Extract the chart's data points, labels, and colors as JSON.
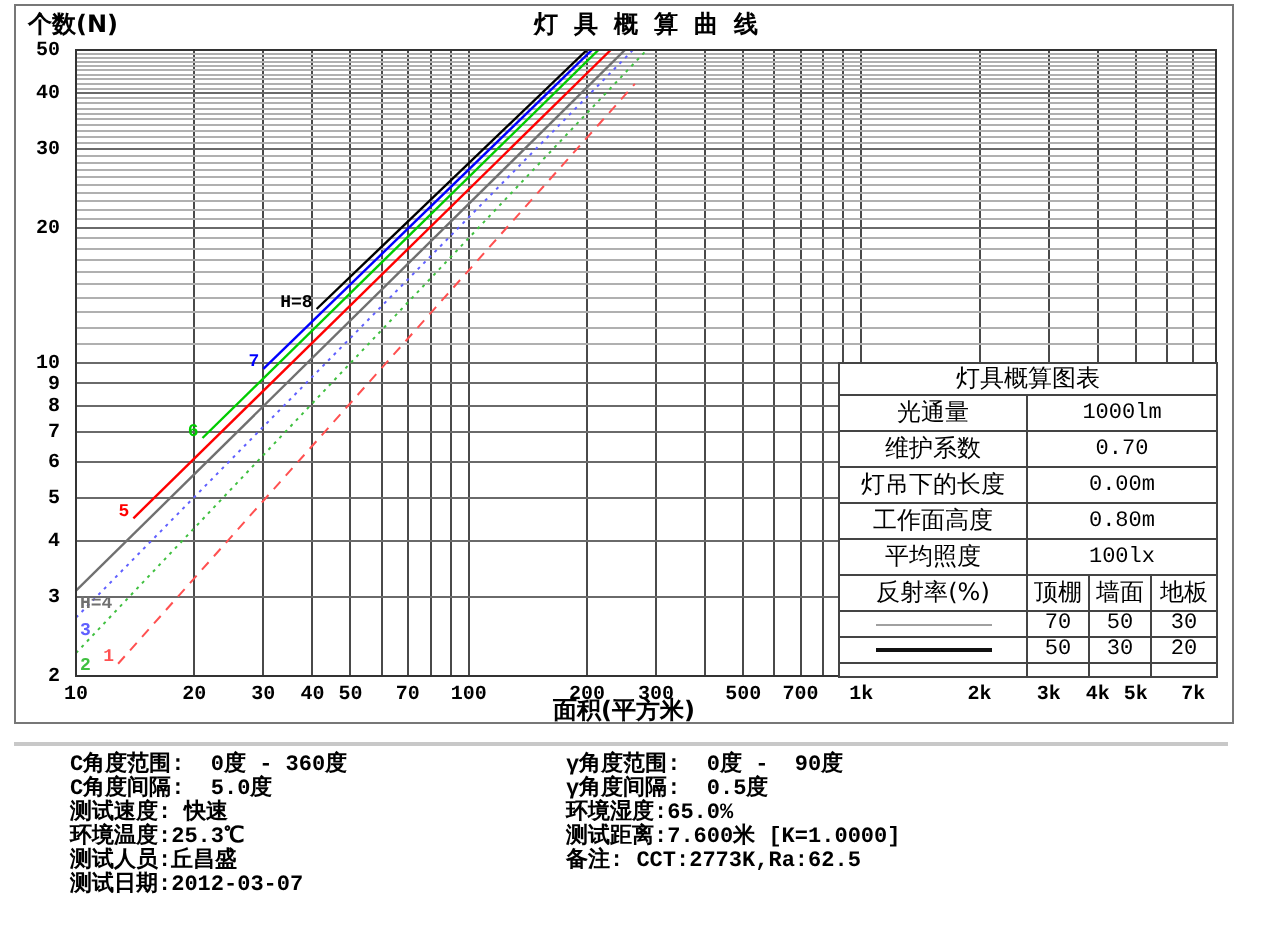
{
  "chart_data": {
    "type": "line",
    "title": "灯具概算曲线",
    "xlabel": "面积(平方米)",
    "ylabel": "个数(N)",
    "log": "xy",
    "grid": true,
    "marker": "none",
    "xlim": [
      10,
      8000
    ],
    "xticks": [
      10,
      20,
      30,
      40,
      50,
      {
        "value": 60,
        "label": null
      },
      70,
      {
        "value": 80,
        "label": null
      },
      {
        "value": 90,
        "label": null
      },
      100,
      200,
      300,
      {
        "value": 400,
        "label": null
      },
      500,
      {
        "value": 600,
        "label": null
      },
      700,
      {
        "value": 800,
        "label": null
      },
      {
        "value": 900,
        "label": null
      },
      {
        "value": 1000,
        "label": "1k"
      },
      {
        "value": 2000,
        "label": "2k"
      },
      {
        "value": 3000,
        "label": "3k"
      },
      {
        "value": 4000,
        "label": "4k"
      },
      {
        "value": 5000,
        "label": "5k"
      },
      {
        "value": 6000,
        "label": null
      },
      {
        "value": 7000,
        "label": "7k"
      }
    ],
    "ylim": [
      2,
      50
    ],
    "yticks": [
      2,
      3,
      4,
      5,
      6,
      7,
      8,
      9,
      10,
      {
        "value": 11,
        "label": null
      },
      {
        "value": 12,
        "label": null
      },
      {
        "value": 13,
        "label": null
      },
      {
        "value": 14,
        "label": null
      },
      {
        "value": 15,
        "label": null
      },
      {
        "value": 16,
        "label": null
      },
      {
        "value": 17,
        "label": null
      },
      {
        "value": 18,
        "label": null
      },
      {
        "value": 19,
        "label": null
      },
      20,
      {
        "value": 21,
        "label": null
      },
      {
        "value": 22,
        "label": null
      },
      {
        "value": 23,
        "label": null
      },
      {
        "value": 24,
        "label": null
      },
      {
        "value": 25,
        "label": null
      },
      {
        "value": 26,
        "label": null
      },
      {
        "value": 27,
        "label": null
      },
      {
        "value": 28,
        "label": null
      },
      {
        "value": 29,
        "label": null
      },
      30,
      {
        "value": 31,
        "label": null
      },
      {
        "value": 32,
        "label": null
      },
      {
        "value": 33,
        "label": null
      },
      {
        "value": 34,
        "label": null
      },
      {
        "value": 35,
        "label": null
      },
      {
        "value": 36,
        "label": null
      },
      {
        "value": 37,
        "label": null
      },
      {
        "value": 38,
        "label": null
      },
      {
        "value": 39,
        "label": null
      },
      40,
      {
        "value": 41,
        "label": null
      },
      {
        "value": 42,
        "label": null
      },
      {
        "value": 43,
        "label": null
      },
      {
        "value": 44,
        "label": null
      },
      {
        "value": 45,
        "label": null
      },
      {
        "value": 46,
        "label": null
      },
      {
        "value": 47,
        "label": null
      },
      {
        "value": 48,
        "label": null
      },
      {
        "value": 49,
        "label": null
      },
      50
    ],
    "series": [
      {
        "name": "1",
        "color": "#ff5050",
        "line_style": "dashed",
        "x": [
          12.8,
          265
        ],
        "values": [
          2.13,
          42
        ]
      },
      {
        "name": "2",
        "color": "#40c040",
        "line_style": "dotted",
        "x": [
          10,
          284
        ],
        "values": [
          2.25,
          50
        ]
      },
      {
        "name": "3",
        "color": "#6060ff",
        "line_style": "dotted",
        "x": [
          10,
          262
        ],
        "values": [
          2.7,
          50
        ]
      },
      {
        "name": "H=4",
        "color": "#707070",
        "line_style": "solid",
        "x": [
          10,
          250
        ],
        "values": [
          3.1,
          50
        ]
      },
      {
        "name": "5",
        "color": "#ff0000",
        "line_style": "solid",
        "x": [
          14,
          230
        ],
        "values": [
          4.5,
          50
        ]
      },
      {
        "name": "6",
        "color": "#00cc00",
        "line_style": "solid",
        "x": [
          21,
          214
        ],
        "values": [
          6.8,
          50
        ]
      },
      {
        "name": "7",
        "color": "#0000ff",
        "line_style": "solid",
        "x": [
          30,
          206
        ],
        "values": [
          9.7,
          50
        ]
      },
      {
        "name": "H=8",
        "color": "#000000",
        "line_style": "solid",
        "x": [
          41,
          200
        ],
        "values": [
          13.2,
          50
        ]
      }
    ],
    "annotations": [
      "灯具概算图表",
      "光通量",
      "1000lm",
      "维护系数",
      "0.70",
      "灯吊下的长度",
      "0.00m",
      "工作面高度",
      "0.80m",
      "平均照度",
      "100lx",
      "反射率(%)",
      "顶棚",
      "墙面",
      "地板",
      "70",
      "50",
      "30",
      "50",
      "30",
      "20",
      "C角度范围:  0度 - 360度",
      "C角度间隔:  5.0度",
      "测试速度: 快速",
      "环境温度:25.3℃",
      "测试人员:丘昌盛",
      "测试日期:2012-03-07",
      "γ角度范围:  0度 -  90度",
      "γ角度间隔:  0.5度",
      "环境湿度:65.0%",
      "测试距离:7.600米 [K=1.0000]",
      "备注: CCT:2773K,Ra:62.5"
    ]
  }
}
